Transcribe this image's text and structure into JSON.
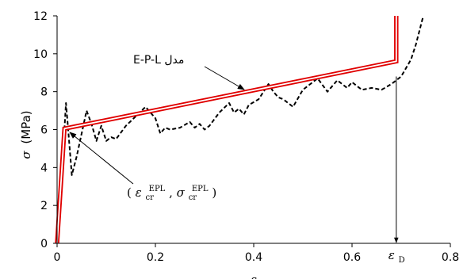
{
  "chart_data": {
    "type": "line",
    "xlabel": "ε",
    "ylabel_symbol": "σ",
    "ylabel_unit": "(MPa)",
    "xlim": [
      0,
      0.8
    ],
    "ylim": [
      0,
      12
    ],
    "x_ticks": [
      "0",
      "0.2",
      "0.4",
      "0.6",
      "0.8"
    ],
    "y_ticks": [
      "0",
      "2",
      "4",
      "6",
      "8",
      "10",
      "12"
    ],
    "grid": false,
    "series": [
      {
        "name": "E-P-L مدل",
        "style": "double-red",
        "color": "#e00000",
        "x": [
          0,
          0.015,
          0.69,
          0.69
        ],
        "y": [
          0,
          6.05,
          9.6,
          12
        ]
      },
      {
        "name": "",
        "style": "dashed",
        "color": "#000000",
        "x": [
          0,
          0.005,
          0.01,
          0.014,
          0.018,
          0.022,
          0.03,
          0.04,
          0.05,
          0.06,
          0.07,
          0.08,
          0.09,
          0.1,
          0.11,
          0.12,
          0.14,
          0.16,
          0.18,
          0.2,
          0.21,
          0.22,
          0.23,
          0.25,
          0.27,
          0.28,
          0.29,
          0.3,
          0.31,
          0.33,
          0.35,
          0.36,
          0.37,
          0.38,
          0.39,
          0.41,
          0.43,
          0.44,
          0.45,
          0.46,
          0.48,
          0.5,
          0.53,
          0.55,
          0.57,
          0.58,
          0.59,
          0.6,
          0.62,
          0.64,
          0.66,
          0.68,
          0.7,
          0.72,
          0.73,
          0.745
        ],
        "y": [
          0,
          2.0,
          4.3,
          5.6,
          7.4,
          6.2,
          3.6,
          4.6,
          5.8,
          7.0,
          6.3,
          5.4,
          6.2,
          5.4,
          5.6,
          5.5,
          6.2,
          6.7,
          7.2,
          6.6,
          5.8,
          6.1,
          6.0,
          6.1,
          6.4,
          6.1,
          6.3,
          6.0,
          6.2,
          6.9,
          7.4,
          6.9,
          7.1,
          6.8,
          7.3,
          7.6,
          8.4,
          8.0,
          7.7,
          7.6,
          7.2,
          8.1,
          8.7,
          8.0,
          8.6,
          8.4,
          8.2,
          8.5,
          8.1,
          8.2,
          8.1,
          8.4,
          8.8,
          9.7,
          10.5,
          12.0
        ]
      }
    ],
    "annotations": {
      "model_label": "E-P-L مدل",
      "critical_point": {
        "x": 0.015,
        "y": 6.05,
        "open": "(",
        "eps_sym": "ε",
        "eps_sub": "cr",
        "eps_sup": "EPL",
        "comma": ",",
        "sig_sym": "σ",
        "sig_sub": "cr",
        "sig_sup": "EPL",
        "close": ")"
      },
      "epsilon_d": {
        "x": 0.69,
        "y_from": 8.8,
        "sym": "ε",
        "sub": "D"
      }
    }
  }
}
